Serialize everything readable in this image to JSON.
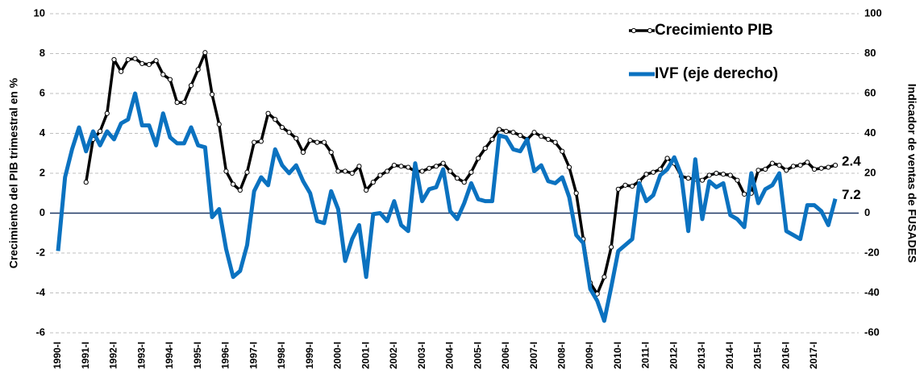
{
  "chart_data": {
    "type": "line",
    "y_label": "Crecimiento del PIB trimestral en %",
    "y2_label": "Indicador de ventas de FUSADES",
    "categories": [
      "1990-I",
      null,
      null,
      null,
      "1991-I",
      null,
      null,
      null,
      "1992-I",
      null,
      null,
      null,
      "1993-I",
      null,
      null,
      null,
      "1994-I",
      null,
      null,
      null,
      "1995-I",
      null,
      null,
      null,
      "1996-I",
      null,
      null,
      null,
      "1997-I",
      null,
      null,
      null,
      "1998-I",
      null,
      null,
      null,
      "1999-I",
      null,
      null,
      null,
      "2000-I",
      null,
      null,
      null,
      "2001-I",
      null,
      null,
      null,
      "2002-I",
      null,
      null,
      null,
      "2003-I",
      null,
      null,
      null,
      "2004-I",
      null,
      null,
      null,
      "2005-I",
      null,
      null,
      null,
      "2006-I",
      null,
      null,
      null,
      "2007-I",
      null,
      null,
      null,
      "2008-I",
      null,
      null,
      null,
      "2009-I",
      null,
      null,
      null,
      "2010-I",
      null,
      null,
      null,
      "2011-I",
      null,
      null,
      null,
      "2012-I",
      null,
      null,
      null,
      "2013-I",
      null,
      null,
      null,
      "2014-I",
      null,
      null,
      null,
      "2015-I",
      null,
      null,
      null,
      "2016-I",
      null,
      null,
      null,
      "2017-I",
      null,
      null,
      null
    ],
    "series": [
      {
        "name": "Crecimiento PIB",
        "color": "#000000",
        "marker": true,
        "values": [
          null,
          null,
          null,
          null,
          1.55,
          3.7,
          4.1,
          5.0,
          7.7,
          7.1,
          7.7,
          7.75,
          7.5,
          7.45,
          7.65,
          6.95,
          6.7,
          5.55,
          5.55,
          6.4,
          7.2,
          8.05,
          5.95,
          4.45,
          2.1,
          1.45,
          1.15,
          2.05,
          3.55,
          3.6,
          5.0,
          4.7,
          4.3,
          4.05,
          3.75,
          3.05,
          3.65,
          3.55,
          3.55,
          3.05,
          2.1,
          2.1,
          2.0,
          2.35,
          1.15,
          1.55,
          1.9,
          2.1,
          2.4,
          2.35,
          2.3,
          2.1,
          2.1,
          2.25,
          2.35,
          2.5,
          2.1,
          1.75,
          1.55,
          2.05,
          2.75,
          3.25,
          3.7,
          4.2,
          4.1,
          4.05,
          3.9,
          3.7,
          4.05,
          3.85,
          3.7,
          3.55,
          3.1,
          2.3,
          1.0,
          -1.3,
          -3.5,
          -4.05,
          -3.2,
          -1.7,
          1.2,
          1.4,
          1.35,
          1.6,
          1.95,
          2.05,
          2.2,
          2.75,
          2.5,
          1.85,
          1.75,
          1.7,
          1.65,
          1.9,
          2.0,
          1.95,
          1.9,
          1.65,
          0.95,
          1.0,
          2.15,
          2.2,
          2.5,
          2.4,
          2.15,
          2.35,
          2.4,
          2.55,
          2.2,
          2.25,
          2.3,
          2.4
        ]
      },
      {
        "name": "IVF (eje derecho)",
        "color": "#0b72c0",
        "axis": "y2",
        "values": [
          -19,
          18,
          32,
          43,
          31,
          41,
          34,
          41,
          37,
          45,
          47,
          60,
          44,
          44,
          34,
          50,
          38,
          35,
          35,
          43,
          34,
          33,
          -2,
          2,
          -18,
          -32,
          -29,
          -16,
          11,
          18,
          14,
          32,
          24,
          20,
          24,
          16,
          10,
          -4,
          -5,
          11,
          2,
          -24,
          -13,
          -6,
          -32,
          -0.5,
          0,
          -4,
          6,
          -6,
          -9,
          25,
          6,
          12,
          13,
          22,
          1,
          -3,
          5,
          15,
          7,
          6,
          6,
          39,
          38,
          32,
          31,
          37,
          21,
          24,
          16,
          15,
          18,
          8,
          -11,
          -15,
          -38,
          -44,
          -54,
          -37,
          -19,
          -16,
          -13,
          15,
          6,
          9,
          19,
          22,
          28,
          19,
          -9,
          27,
          -3,
          16,
          13,
          15,
          -1,
          -3,
          -7,
          20,
          5,
          12,
          14,
          20,
          -9,
          -11,
          -13,
          4,
          4,
          1,
          -6,
          7.2
        ]
      }
    ],
    "ylim": [
      -6,
      10
    ],
    "yticks": [
      -6,
      -4,
      -2,
      0,
      2,
      4,
      6,
      8,
      10
    ],
    "y2lim": [
      -60,
      100
    ],
    "y2ticks": [
      -60,
      -40,
      -20,
      0,
      20,
      40,
      60,
      80,
      100
    ],
    "grid": true
  }
}
